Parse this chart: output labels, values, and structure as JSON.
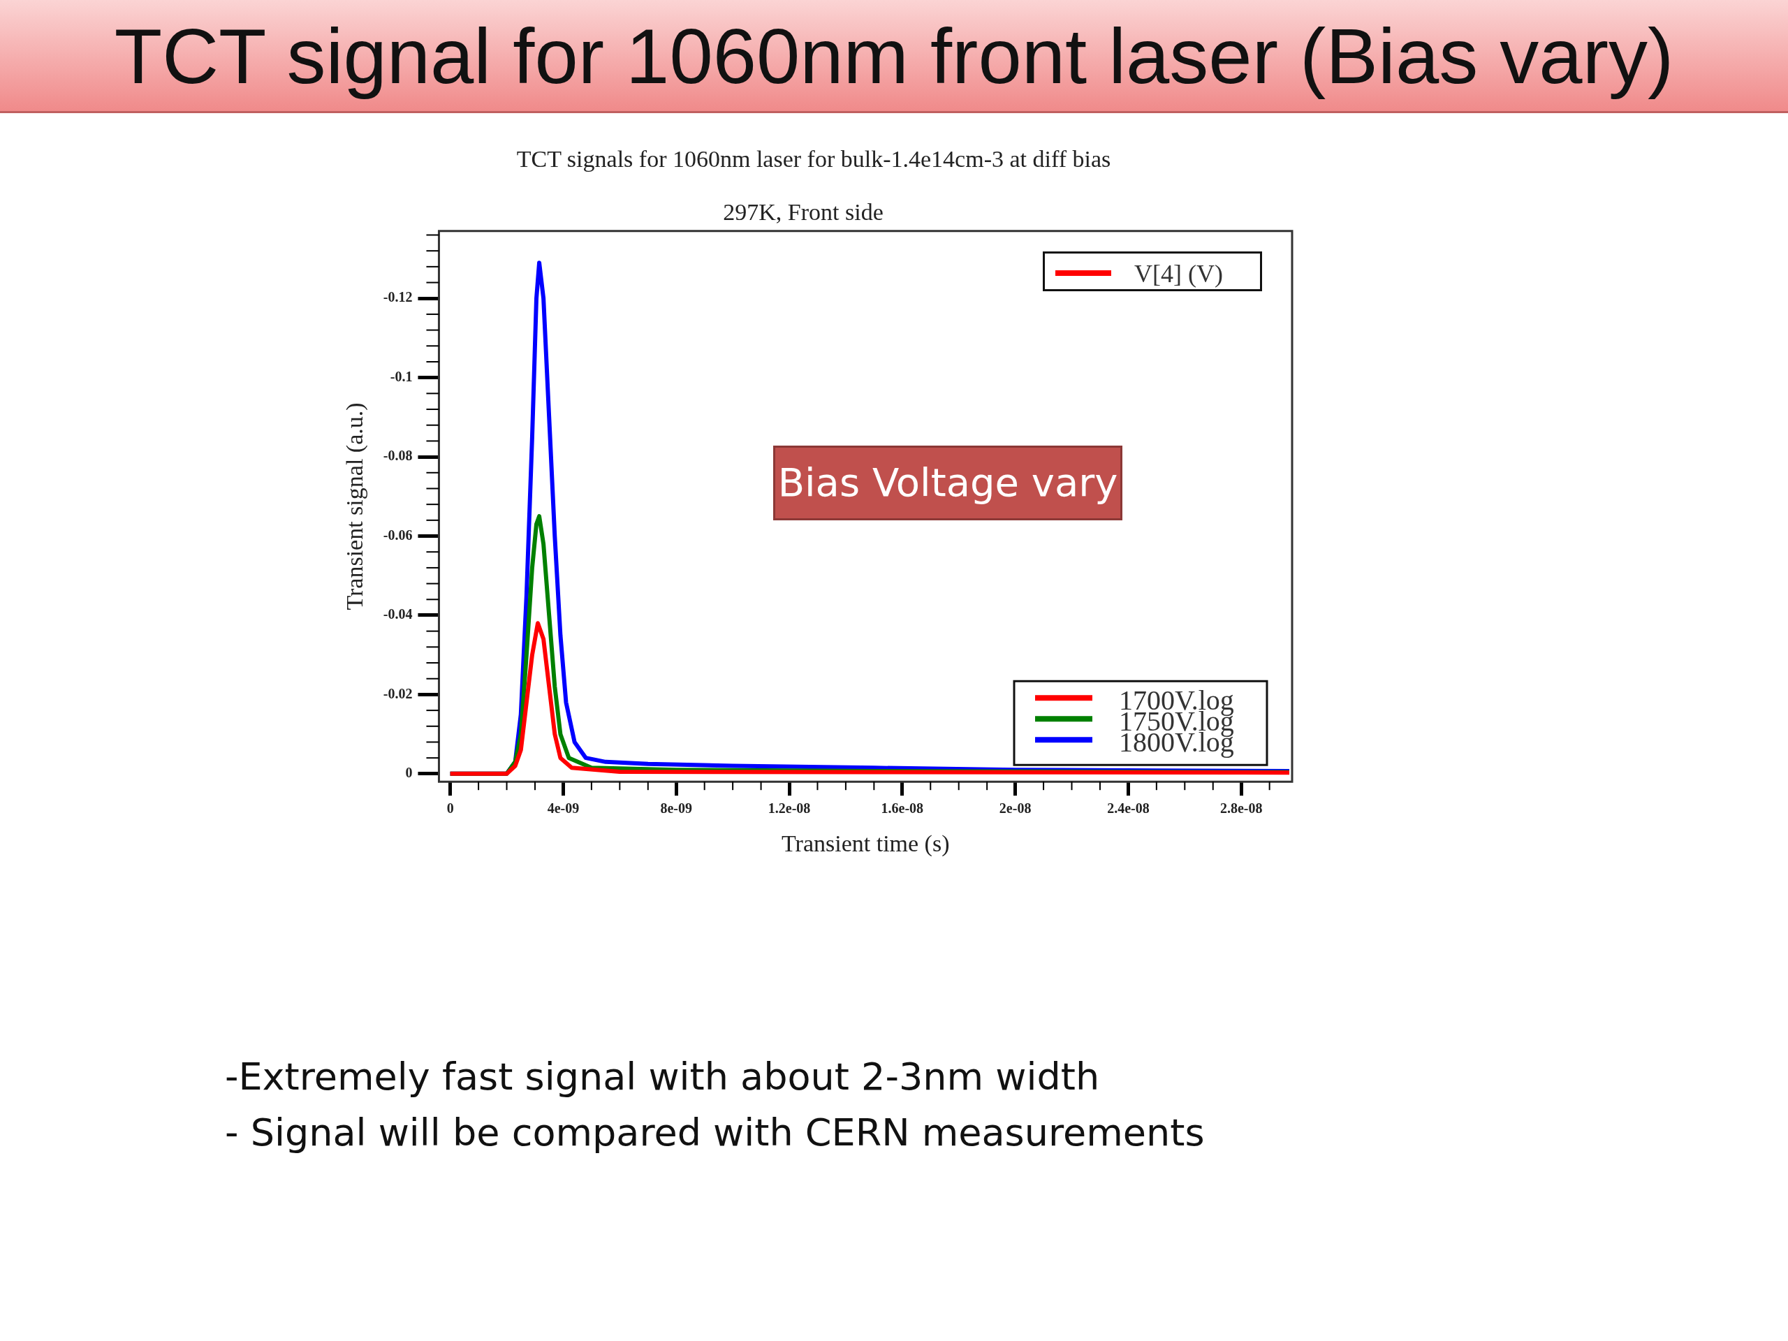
{
  "chart_data": {
    "type": "line",
    "title": "TCT signal for 1060nm front laser (Bias vary)",
    "subtitle": "TCT signals for 1060nm laser for bulk-1.4e14cm-3 at diff bias",
    "xlabel": "Transient time (s)",
    "ylabel": "Transient signal (a.u.)",
    "annotations": [
      "297K, Front side",
      "V[4] (V)",
      "Bias Voltage vary",
      "-Extremely fast signal with about 2-3nm width",
      "- Signal will be compared with CERN measurements"
    ],
    "xlim": [
      -4e-10,
      2.98e-08
    ],
    "xticks": [
      {
        "value": 0,
        "label": "0"
      },
      {
        "value": 4e-09,
        "label": "4e-09"
      },
      {
        "value": 8e-09,
        "label": "8e-09"
      },
      {
        "value": 1.2e-08,
        "label": "1.2e-08"
      },
      {
        "value": 1.6e-08,
        "label": "1.6e-08"
      },
      {
        "value": 2e-08,
        "label": "2e-08"
      },
      {
        "value": 2.4e-08,
        "label": "2.4e-08"
      },
      {
        "value": 2.8e-08,
        "label": "2.8e-08"
      }
    ],
    "ylim": [
      0.002,
      -0.137
    ],
    "yticks": [
      0,
      -0.02,
      -0.04,
      -0.06,
      -0.08,
      -0.1,
      -0.12
    ],
    "grid": false,
    "legend": "bottom right",
    "marker": "none",
    "line_style": "solid",
    "series": [
      {
        "name": "1700V.log",
        "color": "#ff0000",
        "x": [
          0,
          2e-09,
          2.3e-09,
          2.5e-09,
          2.7e-09,
          2.9e-09,
          3.1e-09,
          3.3e-09,
          3.5e-09,
          3.7e-09,
          3.9e-09,
          4.3e-09,
          6e-09,
          1.5e-08,
          2.97e-08
        ],
        "values": [
          0,
          0,
          -0.002,
          -0.006,
          -0.018,
          -0.03,
          -0.038,
          -0.034,
          -0.022,
          -0.01,
          -0.004,
          -0.0015,
          -0.0005,
          -0.0004,
          -0.0003
        ]
      },
      {
        "name": "1750V.log",
        "color": "#008000",
        "x": [
          0,
          2e-09,
          2.3e-09,
          2.5e-09,
          2.7e-09,
          2.9e-09,
          3.05e-09,
          3.15e-09,
          3.3e-09,
          3.5e-09,
          3.7e-09,
          3.9e-09,
          4.2e-09,
          5e-09,
          8e-09,
          1.5e-08,
          2.97e-08
        ],
        "values": [
          0,
          0,
          -0.003,
          -0.01,
          -0.03,
          -0.052,
          -0.063,
          -0.065,
          -0.058,
          -0.04,
          -0.022,
          -0.01,
          -0.004,
          -0.0015,
          -0.001,
          -0.0007,
          -0.0004
        ]
      },
      {
        "name": "1800V.log",
        "color": "#0000ff",
        "x": [
          0,
          2e-09,
          2.3e-09,
          2.5e-09,
          2.7e-09,
          2.9e-09,
          3.05e-09,
          3.15e-09,
          3.3e-09,
          3.5e-09,
          3.7e-09,
          3.9e-09,
          4.1e-09,
          4.4e-09,
          4.8e-09,
          5.5e-09,
          7e-09,
          1e-08,
          1.5e-08,
          2e-08,
          2.5e-08,
          2.97e-08
        ],
        "values": [
          0,
          0,
          -0.003,
          -0.015,
          -0.045,
          -0.085,
          -0.12,
          -0.129,
          -0.12,
          -0.09,
          -0.06,
          -0.035,
          -0.018,
          -0.008,
          -0.004,
          -0.003,
          -0.0025,
          -0.002,
          -0.0015,
          -0.001,
          -0.0008,
          -0.0007
        ]
      }
    ]
  }
}
